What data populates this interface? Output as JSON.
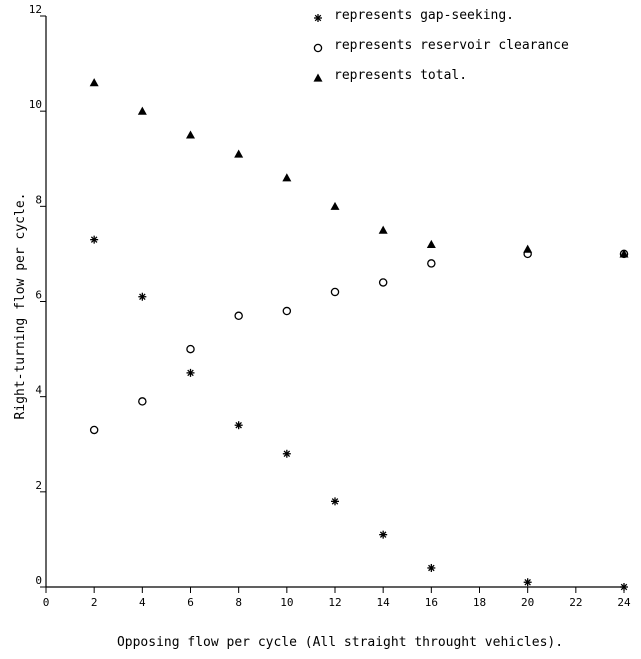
{
  "chart_data": {
    "type": "scatter",
    "title": "",
    "xlabel": "Opposing flow per cycle (All straight throught vehicles).",
    "ylabel": "Right-turning flow per cycle.",
    "xlim": [
      0,
      24
    ],
    "ylim": [
      0,
      12
    ],
    "x_ticks": [
      "0",
      "2",
      "4",
      "6",
      "8",
      "10",
      "12",
      "14",
      "16",
      "18",
      "20",
      "22",
      "24"
    ],
    "y_ticks": [
      "0",
      "2",
      "4",
      "6",
      "8",
      "10",
      "12"
    ],
    "grid": false,
    "legend_position": "top-right",
    "series": [
      {
        "name": "represents gap-seeking.",
        "marker": "asterisk",
        "points": [
          {
            "x": 2,
            "y": 7.3
          },
          {
            "x": 4,
            "y": 6.1
          },
          {
            "x": 6,
            "y": 4.5
          },
          {
            "x": 8,
            "y": 3.4
          },
          {
            "x": 10,
            "y": 2.8
          },
          {
            "x": 12,
            "y": 1.8
          },
          {
            "x": 14,
            "y": 1.1
          },
          {
            "x": 16,
            "y": 0.4
          },
          {
            "x": 20,
            "y": 0.1
          },
          {
            "x": 24,
            "y": 0.0
          }
        ]
      },
      {
        "name": "represents reservoir clearance",
        "marker": "circle",
        "points": [
          {
            "x": 2,
            "y": 3.3
          },
          {
            "x": 4,
            "y": 3.9
          },
          {
            "x": 6,
            "y": 5.0
          },
          {
            "x": 8,
            "y": 5.7
          },
          {
            "x": 10,
            "y": 5.8
          },
          {
            "x": 12,
            "y": 6.2
          },
          {
            "x": 14,
            "y": 6.4
          },
          {
            "x": 16,
            "y": 6.8
          },
          {
            "x": 20,
            "y": 7.0
          },
          {
            "x": 24,
            "y": 7.0
          }
        ]
      },
      {
        "name": "represents total.",
        "marker": "triangle",
        "points": [
          {
            "x": 2,
            "y": 10.6
          },
          {
            "x": 4,
            "y": 10.0
          },
          {
            "x": 6,
            "y": 9.5
          },
          {
            "x": 8,
            "y": 9.1
          },
          {
            "x": 10,
            "y": 8.6
          },
          {
            "x": 12,
            "y": 8.0
          },
          {
            "x": 14,
            "y": 7.5
          },
          {
            "x": 16,
            "y": 7.2
          },
          {
            "x": 20,
            "y": 7.1
          },
          {
            "x": 24,
            "y": 7.0
          }
        ]
      }
    ]
  }
}
